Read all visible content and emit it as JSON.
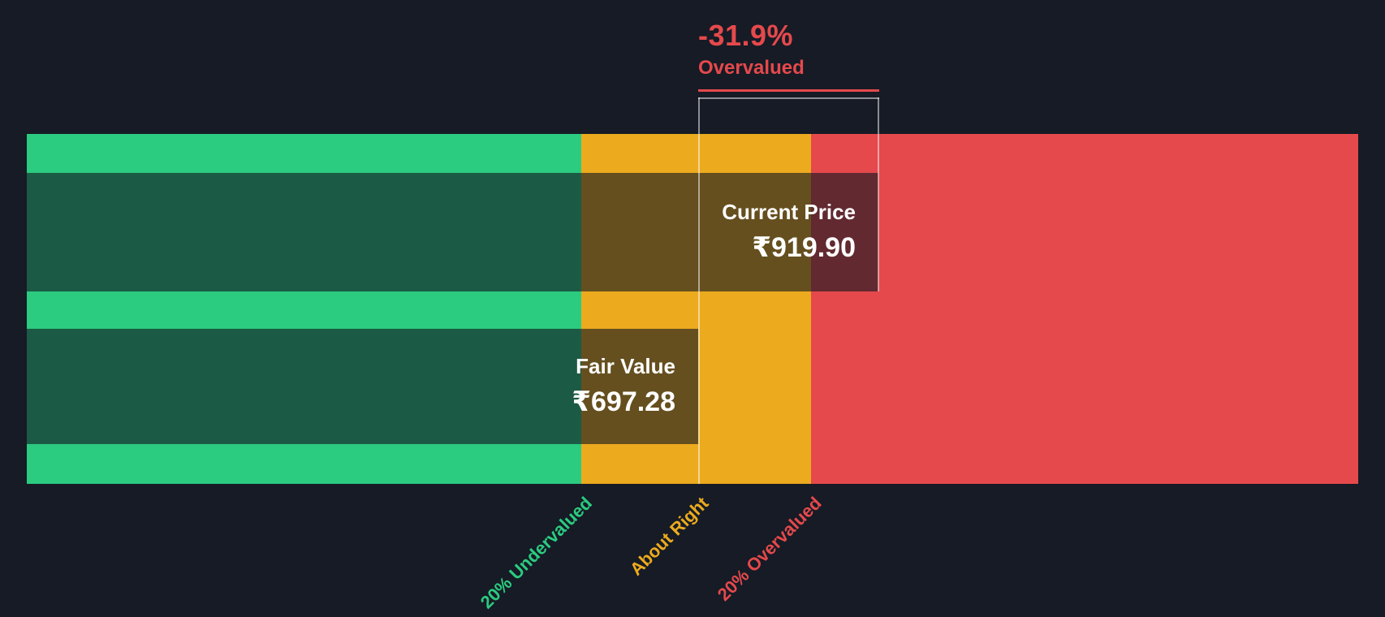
{
  "chart_data": {
    "type": "bar",
    "subtype": "fair-value-gauge",
    "title": "",
    "currency_symbol": "₹",
    "current_price_label": "Current Price",
    "current_price_display": "₹919.90",
    "current_price": 919.9,
    "fair_value_label": "Fair Value",
    "fair_value_display": "₹697.28",
    "fair_value": 697.28,
    "delta_percent": "-31.9%",
    "delta_status": "Overvalued",
    "zones": [
      {
        "label": "20% Undervalued",
        "color": "#2bcb80"
      },
      {
        "label": "About Right",
        "color": "#ecaa1e"
      },
      {
        "label": "20% Overvalued",
        "color": "#e5494c"
      }
    ],
    "colors": {
      "background": "#161b25",
      "overlay_band": "rgba(18,23,32,0.62)",
      "marker_line": "rgba(255,255,255,0.5)",
      "negative": "#e5494c",
      "text": "#ffffff"
    }
  }
}
